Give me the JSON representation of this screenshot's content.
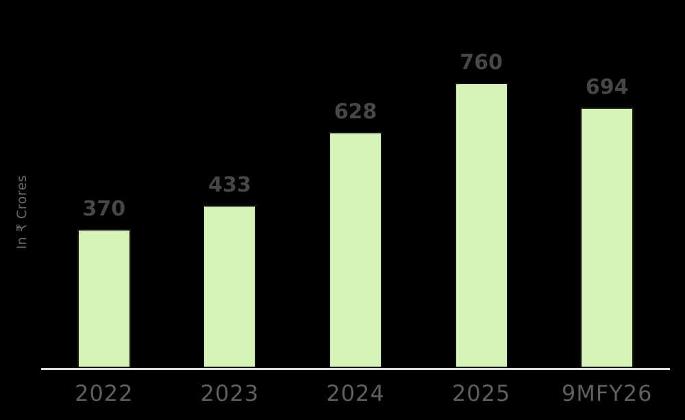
{
  "chart_data": {
    "type": "bar",
    "categories": [
      "2022",
      "2023",
      "2024",
      "2025",
      "9MFY26"
    ],
    "values": [
      370,
      433,
      628,
      760,
      694
    ],
    "title": "",
    "xlabel": "",
    "ylabel": "In ₹ Crores",
    "ylim": [
      0,
      980
    ],
    "grid": false,
    "legend": false,
    "value_labels_shown": true,
    "colors": {
      "background": "#000000",
      "bar_fill": "#d7f2b8",
      "bar_border": "#141414",
      "value_label": "#474747",
      "tick_label": "#5f5f5f",
      "axis_label": "#6a6a6a",
      "axis_line": "#dcdcdc"
    }
  }
}
